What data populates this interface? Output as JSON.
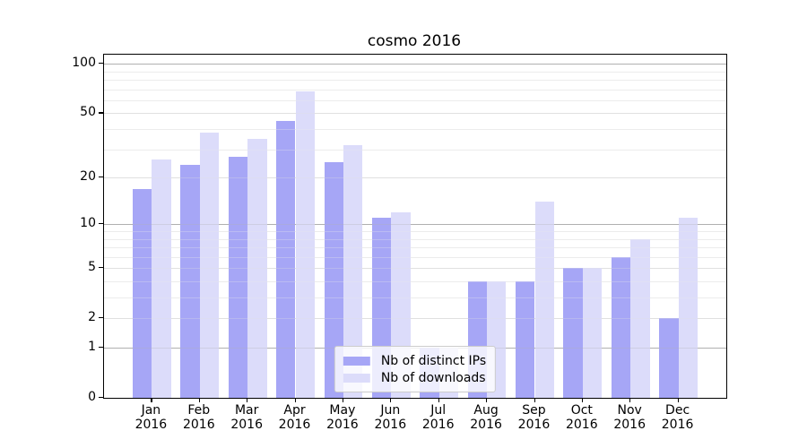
{
  "figure": {
    "background": "#ffffff"
  },
  "chart_data": {
    "type": "bar",
    "title": "cosmo 2016",
    "x_axis": {
      "categories": [
        "Jan",
        "Feb",
        "Mar",
        "Apr",
        "May",
        "Jun",
        "Jul",
        "Aug",
        "Sep",
        "Oct",
        "Nov",
        "Dec"
      ],
      "year": "2016"
    },
    "y_axis": {
      "scale": "log10(value+1)",
      "ticks": [
        0,
        1,
        2,
        5,
        10,
        20,
        50,
        100
      ],
      "max": 114,
      "major_gridlines": [
        1,
        10,
        100
      ],
      "mid_gridlines": [
        2,
        5,
        20,
        50
      ],
      "minor_gridlines": [
        3,
        4,
        6,
        7,
        8,
        9,
        30,
        40,
        60,
        70,
        80,
        90
      ]
    },
    "series": [
      {
        "name": "Nb of distinct IPs",
        "color": "#a6a6f6",
        "values": [
          17,
          24,
          27,
          45,
          25,
          11,
          1,
          4,
          4,
          5,
          6,
          2
        ]
      },
      {
        "name": "Nb of downloads",
        "color": "#dcdcfa",
        "values": [
          26,
          38,
          35,
          68,
          32,
          12,
          1,
          4,
          14,
          5,
          8,
          11
        ]
      }
    ],
    "legend": {
      "position": "lower center"
    },
    "grid": true
  },
  "colors": {
    "grid_major": "#b0b0b0",
    "grid_mid": "#e0e0e0",
    "grid_minor": "#ececec",
    "spine": "#000000",
    "text": "#000000",
    "legend_border": "#cccccc"
  }
}
